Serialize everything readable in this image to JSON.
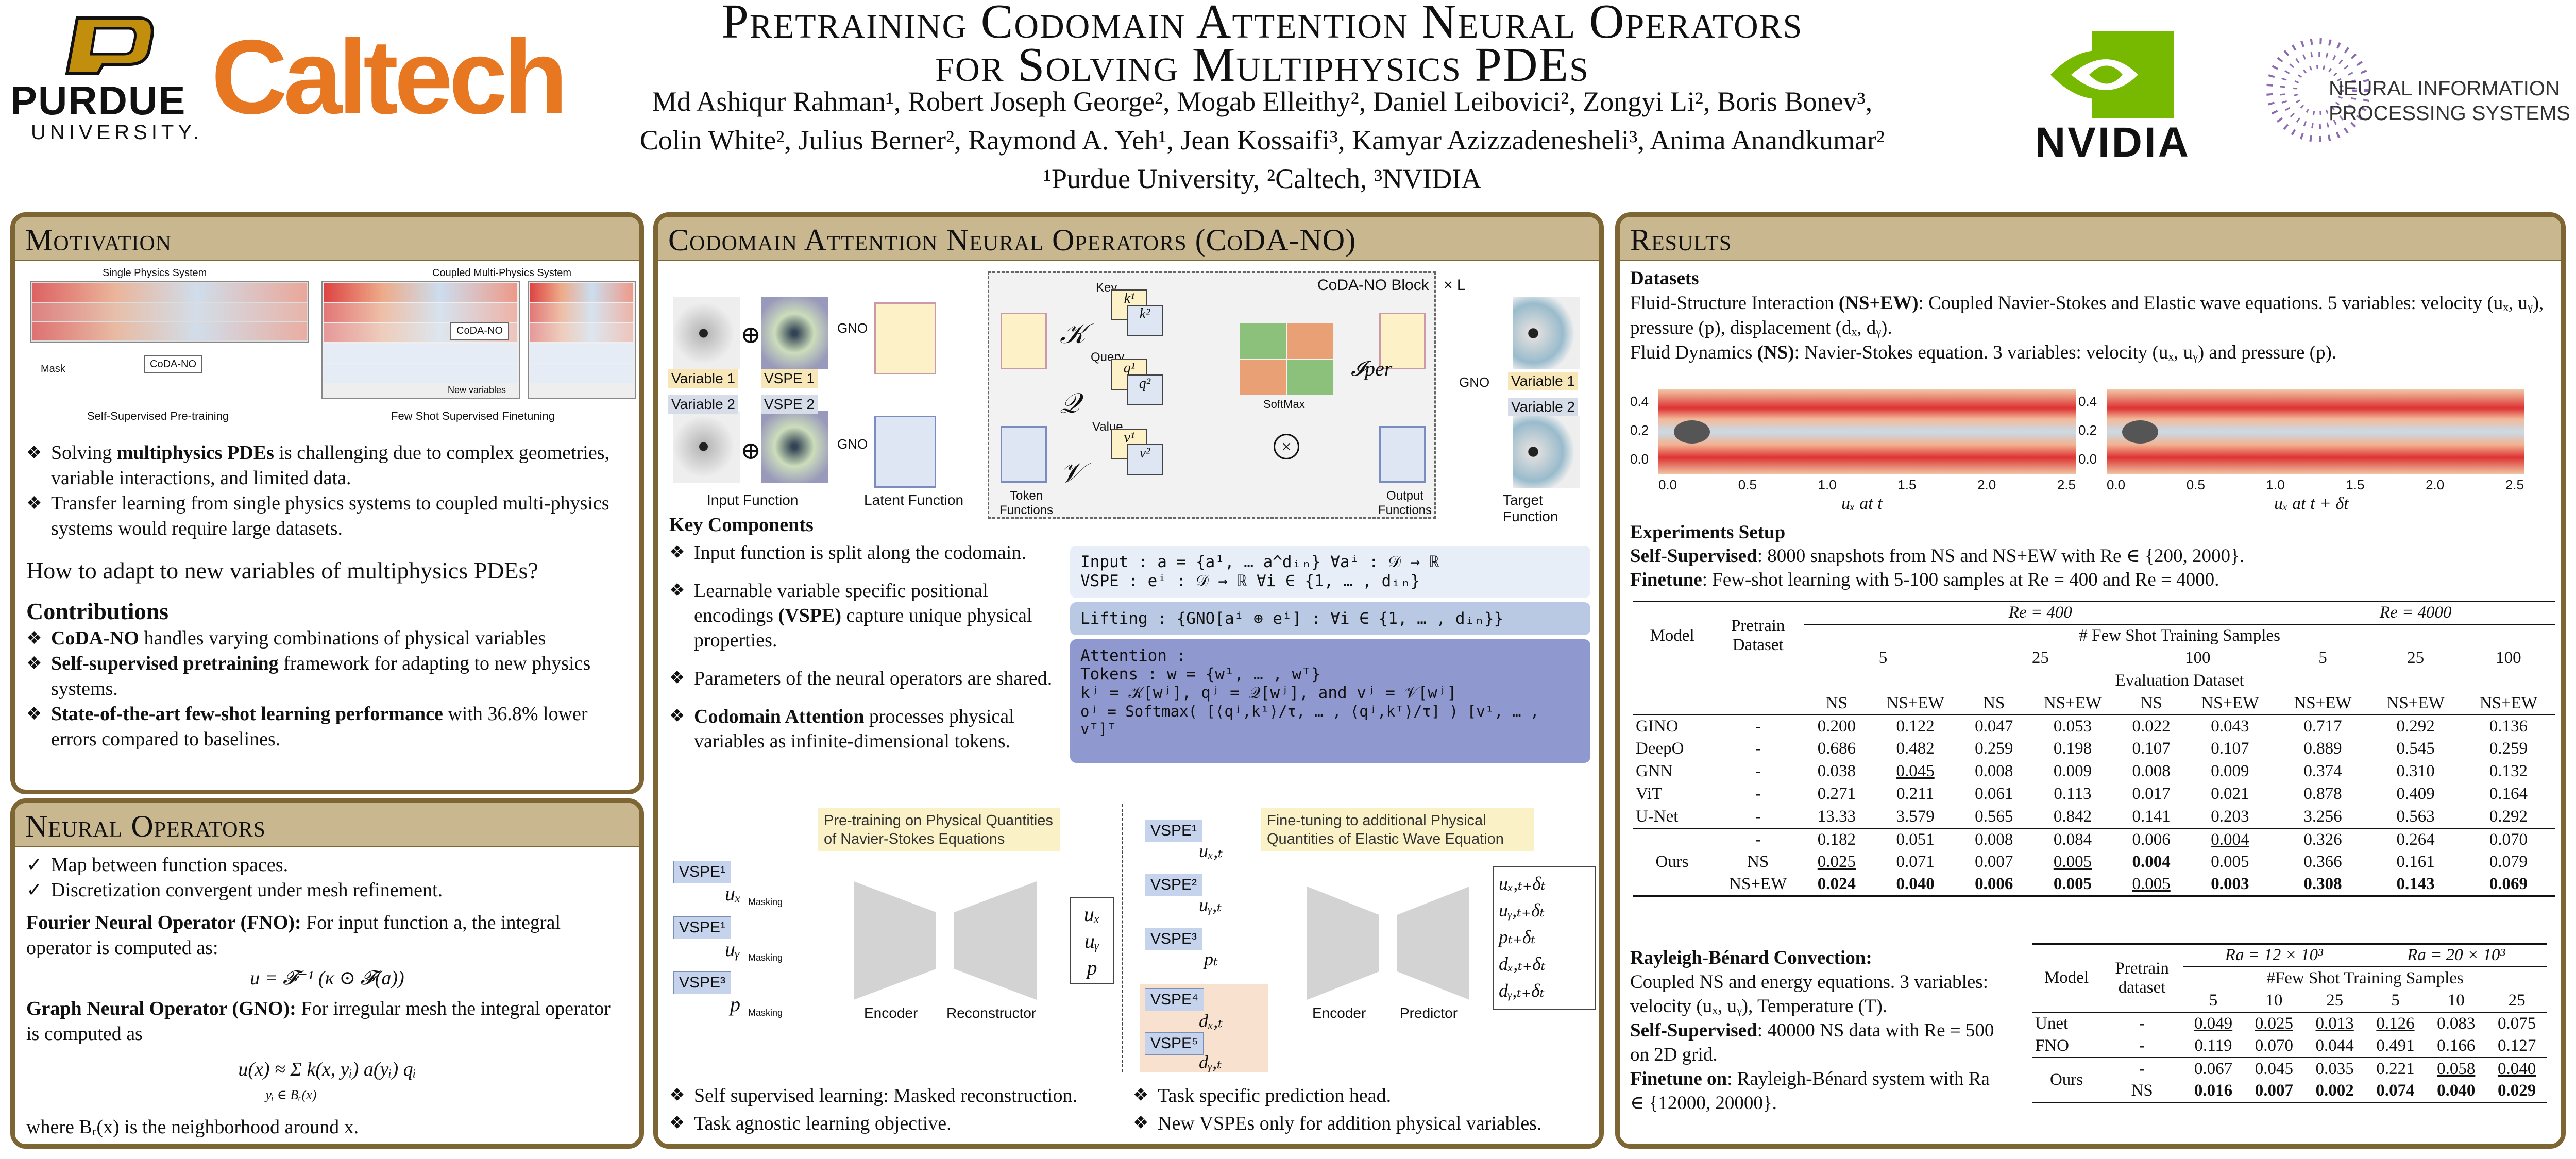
{
  "header": {
    "title_line1": "Pretraining Codomain Attention Neural Operators",
    "title_line2": "for Solving Multiphysics PDEs",
    "authors_line1": "Md Ashiqur Rahman¹, Robert Joseph George², Mogab Elleithy², Daniel Leibovici², Zongyi Li², Boris Bonev³,",
    "authors_line2": "Colin White², Julius Berner², Raymond A. Yeh¹, Jean Kossaifi³, Kamyar Azizzadenesheli³, Anima Anandkumar²",
    "affiliations": "¹Purdue University, ²Caltech, ³NVIDIA",
    "logo_purdue": "PURDUE",
    "logo_purdue_sub": "UNIVERSITY.",
    "logo_caltech": "Caltech",
    "logo_nvidia": "NVIDIA",
    "logo_neurips_1": "NEURAL INFORMATION",
    "logo_neurips_2": "PROCESSING SYSTEMS"
  },
  "motivation": {
    "heading": "Motivation",
    "fig_single": "Single Physics System",
    "fig_coupled": "Coupled Multi-Physics System",
    "fig_mask": "Mask",
    "fig_coda": "CoDA-NO",
    "fig_coda2": "CoDA-NO",
    "fig_newvars": "New variables",
    "fig_cap1": "Self-Supervised Pre-training",
    "fig_cap2": "Few Shot Supervised Finetuning",
    "b1_pre": "Solving ",
    "b1_bold": "multiphysics PDEs",
    "b1_post": " is challenging due to complex geometries, variable interactions, and limited data.",
    "b2": "Transfer learning from single physics systems to coupled multi-physics systems would require large datasets.",
    "question": "How to adapt to new variables of multiphysics PDEs?",
    "contrib_heading": "Contributions",
    "c1_bold": "CoDA-NO",
    "c1_post": " handles varying combinations of physical variables",
    "c2_bold": "Self-supervised pretraining",
    "c2_post": " framework for adapting to new physics systems.",
    "c3_bold": "State-of-the-art few-shot learning performance",
    "c3_post": " with 36.8% lower errors compared to baselines."
  },
  "neural_ops": {
    "heading": "Neural Operators",
    "c1": "Map between function spaces.",
    "c2": "Discretization convergent under mesh refinement.",
    "fno_bold": "Fourier Neural Operator (FNO):",
    "fno_text": " For input function a, the integral operator is computed as:",
    "fno_eq": "u = 𝓕⁻¹ (κ ⊙ 𝓕(a))",
    "gno_bold": "Graph Neural Operator (GNO):",
    "gno_text": " For irregular mesh the integral operator is computed as",
    "gno_eq": "u(x) ≈ Σ k(x, yᵢ) a(yᵢ) qᵢ",
    "gno_sub": "yᵢ ∈ Bᵣ(x)",
    "footer": "where Bᵣ(x) is the neighborhood around x."
  },
  "coda": {
    "heading": "Codomain Attention Neural Operators (CoDA-NO)",
    "var1": "Variable 1",
    "vspe1": "VSPE 1",
    "var2": "Variable 2",
    "vspe2": "VSPE 2",
    "gno": "GNO",
    "gno2": "GNO",
    "gno3": "GNO",
    "input_fn": "Input Function",
    "latent_fn": "Latent Function",
    "token_fn": "Token Functions",
    "key": "Key",
    "query": "Query",
    "value": "Value",
    "k1": "k¹",
    "k2": "k²",
    "q1": "q¹",
    "q2": "q²",
    "v1": "v¹",
    "v2": "v²",
    "block": "CoDA-NO Block",
    "times_l": "× L",
    "softmax": "SoftMax",
    "iper": "𝓘per",
    "output_fn": "Output Functions",
    "target_fn": "Target Function",
    "tvar1": "Variable 1",
    "tvar2": "Variable 2",
    "cal_k": "𝒦",
    "cal_q": "𝒬",
    "cal_v": "𝒱",
    "key_comp": "Key Components",
    "kc1": "Input function is split along the codomain.",
    "kc2_pre": "Learnable variable specific positional encodings ",
    "kc2_bold": "(VSPE)",
    "kc2_post": " capture unique physical properties.",
    "kc3": "Parameters of the neural operators are shared.",
    "kc4_bold": "Codomain Attention",
    "kc4_post": " processes physical variables as infinite-dimensional tokens.",
    "eq_input": "Input : a = {a¹, … a^dᵢₙ}  ∀aⁱ : 𝒟 → ℝ",
    "eq_vspe": "VSPE : eⁱ : 𝒟 → ℝ  ∀i ∈ {1, … , dᵢₙ}",
    "eq_lift": "Lifting : {GNO[aⁱ ⊕ eⁱ] : ∀i ∈ {1, … , dᵢₙ}}",
    "eq_att": "Attention :",
    "eq_tok": "Tokens : w = {w¹, … , wᵀ}",
    "eq_kqv": "kʲ = 𝒦[wʲ], qʲ = 𝒬[wʲ], and vʲ = 𝒱[wʲ]",
    "eq_o": "oʲ = Softmax( [⟨qʲ,k¹⟩/τ, … , ⟨qʲ,kᵀ⟩/τ] ) [v¹, … , vᵀ]ᵀ",
    "pre_title": "Pre-training on Physical Quantities of Navier-Stokes Equations",
    "fine_title": "Fine-tuning to additional Physical Quantities of Elastic Wave Equation",
    "vspe_1": "VSPE¹",
    "vspe_1b": "VSPE¹",
    "vspe_3": "VSPE³",
    "ux_m": "uₓ",
    "uy_m": "uᵧ",
    "p_m": "p",
    "masking": "Masking",
    "encoder": "Encoder",
    "reconstructor": "Reconstructor",
    "encoder2": "Encoder",
    "predictor": "Predictor",
    "out_pre": [
      "uₓ",
      "uᵧ",
      "p"
    ],
    "ft_vspe": [
      "VSPE¹",
      "VSPE²",
      "VSPE³",
      "VSPE⁴",
      "VSPE⁵"
    ],
    "ft_vars": [
      "uₓ,ₜ",
      "uᵧ,ₜ",
      "pₜ",
      "dₓ,ₜ",
      "dᵧ,ₜ"
    ],
    "ft_out": [
      "uₓ,ₜ₊δₜ",
      "uᵧ,ₜ₊δₜ",
      "pₜ₊δₜ",
      "dₓ,ₜ₊δₜ",
      "dᵧ,ₜ₊δₜ"
    ],
    "f1": "Self supervised learning: Masked reconstruction.",
    "f2": "Task agnostic learning objective.",
    "f3": "Task specific prediction head.",
    "f4": "New VSPEs only for addition physical variables."
  },
  "results": {
    "heading": "Results",
    "datasets": "Datasets",
    "ds1_pre": "Fluid-Structure Interaction ",
    "ds1_bold": "(NS+EW)",
    "ds1_post": ": Coupled Navier-Stokes and Elastic wave equations. 5 variables: velocity (uₓ, uᵧ), pressure (p), displacement (dₓ, dᵧ).",
    "ds2_pre": "Fluid Dynamics ",
    "ds2_bold": "(NS)",
    "ds2_post": ": Navier-Stokes equation. 3 variables: velocity (uₓ, uᵧ) and pressure (p).",
    "plot_y": [
      "0.4",
      "0.2",
      "0.0"
    ],
    "plot_x": [
      "0.0",
      "0.5",
      "1.0",
      "1.5",
      "2.0",
      "2.5"
    ],
    "plot_cap1": "uₓ at t",
    "plot_cap2": "uₓ at t + δt",
    "exp_heading": "Experiments Setup",
    "ss_bold": "Self-Supervised",
    "ss_text": ": 8000 snapshots from NS and NS+EW with Re ∈ {200, 2000}.",
    "ft_bold": "Finetune",
    "ft_text": ": Few-shot learning with 5-100 samples at Re = 400 and Re = 4000.",
    "t1": {
      "re400": "Re = 400",
      "re4000": "Re = 4000",
      "model": "Model",
      "pretrain": "Pretrain",
      "dataset": "Dataset",
      "fewshot": "# Few Shot Training Samples",
      "samples": [
        "5",
        "25",
        "100",
        "5",
        "25",
        "100"
      ],
      "evalds": "Evaluation Dataset",
      "evals": [
        "NS",
        "NS+EW",
        "NS",
        "NS+EW",
        "NS",
        "NS+EW",
        "NS+EW",
        "NS+EW",
        "NS+EW"
      ],
      "rows": [
        [
          "GINO",
          "-",
          "0.200",
          "0.122",
          "0.047",
          "0.053",
          "0.022",
          "0.043",
          "0.717",
          "0.292",
          "0.136"
        ],
        [
          "DeepO",
          "-",
          "0.686",
          "0.482",
          "0.259",
          "0.198",
          "0.107",
          "0.107",
          "0.889",
          "0.545",
          "0.259"
        ],
        [
          "GNN",
          "-",
          "0.038",
          "0.045",
          "0.008",
          "0.009",
          "0.008",
          "0.009",
          "0.374",
          "0.310",
          "0.132"
        ],
        [
          "ViT",
          "-",
          "0.271",
          "0.211",
          "0.061",
          "0.113",
          "0.017",
          "0.021",
          "0.878",
          "0.409",
          "0.164"
        ],
        [
          "U-Net",
          "-",
          "13.33",
          "3.579",
          "0.565",
          "0.842",
          "0.141",
          "0.203",
          "3.256",
          "0.563",
          "0.292"
        ]
      ],
      "ours_label": "Ours",
      "ours_rows": [
        [
          "-",
          "0.182",
          "0.051",
          "0.008",
          "0.084",
          "0.006",
          "0.004",
          "0.326",
          "0.264",
          "0.070"
        ],
        [
          "NS",
          "0.025",
          "0.071",
          "0.007",
          "0.005",
          "0.004",
          "0.005",
          "0.366",
          "0.161",
          "0.079"
        ],
        [
          "NS+EW",
          "0.024",
          "0.040",
          "0.006",
          "0.005",
          "0.005",
          "0.003",
          "0.308",
          "0.143",
          "0.069"
        ]
      ]
    },
    "rb_bold": "Rayleigh-Bénard Convection:",
    "rb_text": "Coupled NS and energy equations. 3 variables: velocity (uₓ, uᵧ), Temperature (T).",
    "rb_ss_bold": "Self-Supervised",
    "rb_ss_text": ": 40000 NS data with Re = 500 on 2D grid.",
    "rb_ft_bold": "Finetune on",
    "rb_ft_text": ": Rayleigh-Bénard system with Ra ∈ {12000, 20000}.",
    "t2": {
      "ra1": "Ra = 12 × 10³",
      "ra2": "Ra = 20 × 10³",
      "model": "Model",
      "pretrain": "Pretrain",
      "dataset": "dataset",
      "fewshot": "#Few Shot Training Samples",
      "samples": [
        "5",
        "10",
        "25",
        "5",
        "10",
        "25"
      ],
      "rows": [
        [
          "Unet",
          "-",
          "0.049",
          "0.025",
          "0.013",
          "0.126",
          "0.083",
          "0.075"
        ],
        [
          "FNO",
          "-",
          "0.119",
          "0.070",
          "0.044",
          "0.491",
          "0.166",
          "0.127"
        ]
      ],
      "ours_label": "Ours",
      "ours_rows": [
        [
          "-",
          "0.067",
          "0.045",
          "0.035",
          "0.221",
          "0.058",
          "0.040"
        ],
        [
          "NS",
          "0.016",
          "0.007",
          "0.002",
          "0.074",
          "0.040",
          "0.029"
        ]
      ]
    }
  }
}
